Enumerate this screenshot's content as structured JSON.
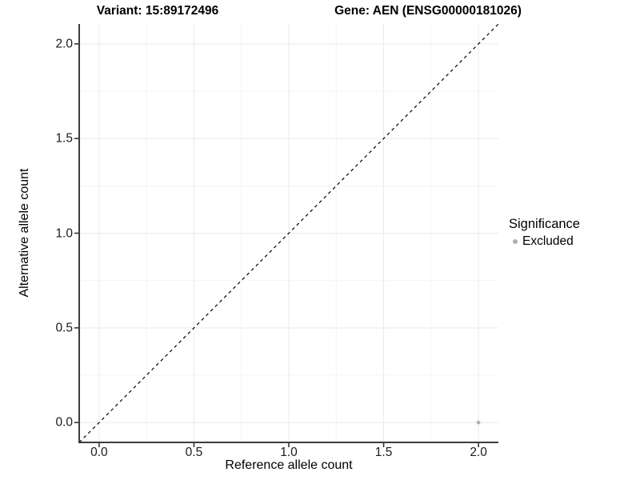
{
  "header": {
    "title_left": "Variant: 15:89172496",
    "title_right": "Gene: AEN (ENSG00000181026)"
  },
  "chart_data": {
    "type": "scatter",
    "title_left": "Variant: 15:89172496",
    "title_right": "Gene: AEN (ENSG00000181026)",
    "xlabel": "Reference allele count",
    "ylabel": "Alternative allele count",
    "xlim": [
      -0.105,
      2.105
    ],
    "ylim": [
      -0.105,
      2.105
    ],
    "x_ticks": [
      0.0,
      0.5,
      1.0,
      1.5,
      2.0
    ],
    "y_ticks": [
      0.0,
      0.5,
      1.0,
      1.5,
      2.0
    ],
    "x_tick_labels": [
      "0.0",
      "0.5",
      "1.0",
      "1.5",
      "2.0"
    ],
    "y_tick_labels": [
      "0.0",
      "0.5",
      "1.0",
      "1.5",
      "2.0"
    ],
    "minor_ticks": [
      0.25,
      0.75,
      1.25,
      1.75
    ],
    "grid": true,
    "identity_line": {
      "style": "dashed",
      "from": [
        -0.105,
        -0.105
      ],
      "to": [
        2.105,
        2.105
      ],
      "color": "#000000"
    },
    "series": [
      {
        "name": "Excluded",
        "color": "#b0b0b0",
        "points": [
          {
            "x": 2.0,
            "y": 0.0
          }
        ]
      }
    ],
    "legend": {
      "title": "Significance",
      "position": "right",
      "items": [
        {
          "label": "Excluded",
          "color": "#b0b0b0"
        }
      ]
    }
  },
  "colors": {
    "axis_line": "#3c3c3c",
    "tick_mark": "#333333",
    "grid_major": "#e9e9e9",
    "grid_minor": "#f4f4f4",
    "point": "#b0b0b0",
    "background": "#ffffff"
  }
}
